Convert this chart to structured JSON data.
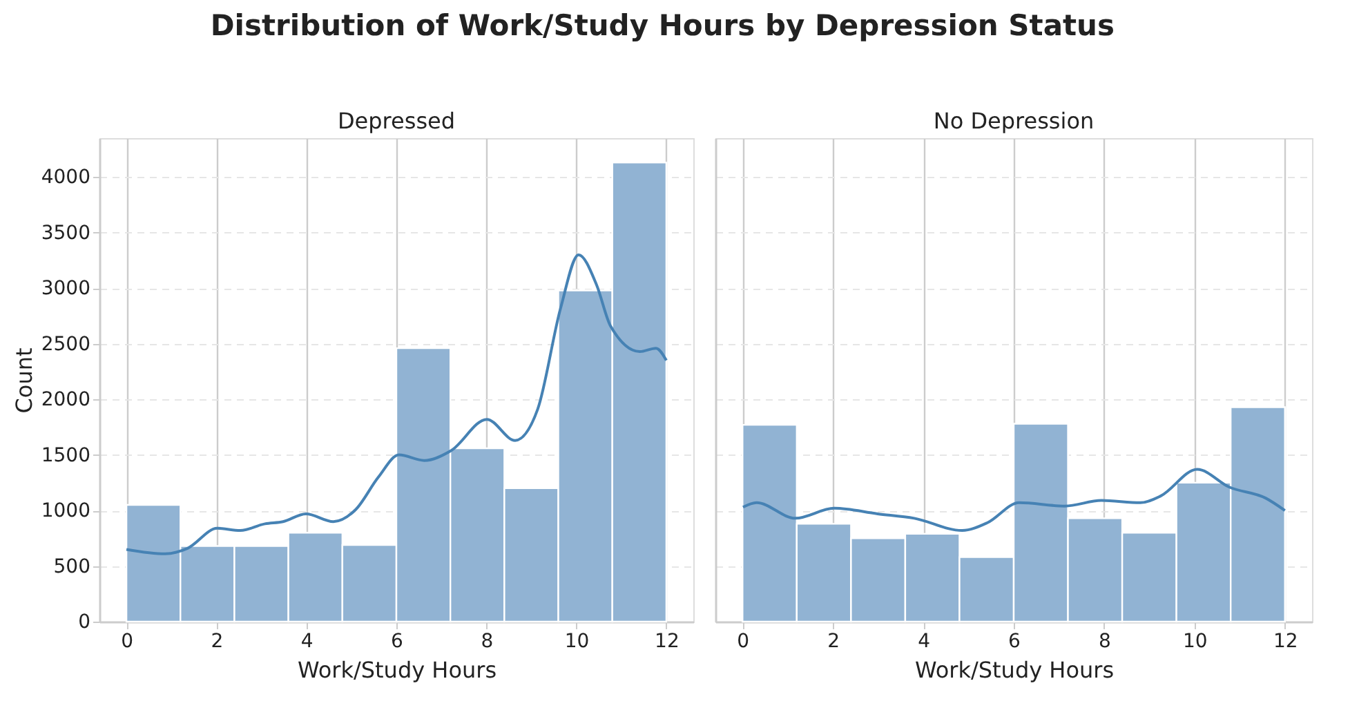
{
  "chart_data": [
    {
      "type": "histogram",
      "title": "Distribution of Work/Study Hours by Depression Status",
      "subtitle": "Depressed",
      "xlabel": "Work/Study Hours",
      "ylabel": "Count",
      "xlim": [
        -0.6,
        12.6
      ],
      "xticks": [
        0,
        2,
        4,
        6,
        8,
        10,
        12
      ],
      "ylim": [
        0,
        4350
      ],
      "yticks": [
        0,
        500,
        1000,
        1500,
        2000,
        2500,
        3000,
        3500,
        4000
      ],
      "grid": true,
      "series": [
        {
          "type": "histogram",
          "color": "#91b3d3",
          "bins": [
            0,
            1.2,
            2.4,
            3.6,
            4.8,
            6,
            7.2,
            8.4,
            9.6,
            10.8,
            12
          ],
          "values": [
            1050,
            680,
            680,
            800,
            690,
            2460,
            1560,
            1200,
            2980,
            4130
          ]
        },
        {
          "type": "line",
          "color": "#4682b4",
          "x": [
            0,
            0.86,
            1.36,
            2.02,
            2.53,
            3.08,
            3.48,
            3.99,
            4.6,
            5.1,
            5.6,
            6.06,
            6.62,
            7.22,
            8.01,
            8.64,
            9.14,
            9.65,
            10.05,
            10.45,
            10.76,
            11.41,
            11.77,
            12
          ],
          "values": [
            650,
            610,
            660,
            840,
            820,
            880,
            900,
            970,
            900,
            1010,
            1300,
            1500,
            1450,
            1540,
            1820,
            1630,
            1910,
            2820,
            3300,
            3030,
            2660,
            2430,
            2460,
            2350
          ]
        }
      ]
    },
    {
      "type": "histogram",
      "subtitle": "No Depression",
      "xlabel": "Work/Study Hours",
      "xlim": [
        -0.6,
        12.6
      ],
      "xticks": [
        0,
        2,
        4,
        6,
        8,
        10,
        12
      ],
      "ylim": [
        0,
        4350
      ],
      "yticks": [
        0,
        500,
        1000,
        1500,
        2000,
        2500,
        3000,
        3500,
        4000
      ],
      "grid": true,
      "tick_labels": "x",
      "series": [
        {
          "type": "histogram",
          "color": "#91b3d3",
          "bins": [
            0,
            1.2,
            2.4,
            3.6,
            4.8,
            6,
            7.2,
            8.4,
            9.6,
            10.8,
            12
          ],
          "values": [
            1770,
            880,
            750,
            790,
            580,
            1780,
            930,
            800,
            1250,
            1930
          ]
        },
        {
          "type": "line",
          "color": "#4682b4",
          "x": [
            0.01,
            0.31,
            1.17,
            2.03,
            2.99,
            3.8,
            4.86,
            5.42,
            6.12,
            7.13,
            7.94,
            8.8,
            9.25,
            10.06,
            10.77,
            11.58,
            12
          ],
          "values": [
            1030,
            1070,
            930,
            1020,
            970,
            930,
            820,
            890,
            1070,
            1040,
            1090,
            1070,
            1130,
            1370,
            1210,
            1110,
            1000
          ]
        }
      ]
    }
  ]
}
